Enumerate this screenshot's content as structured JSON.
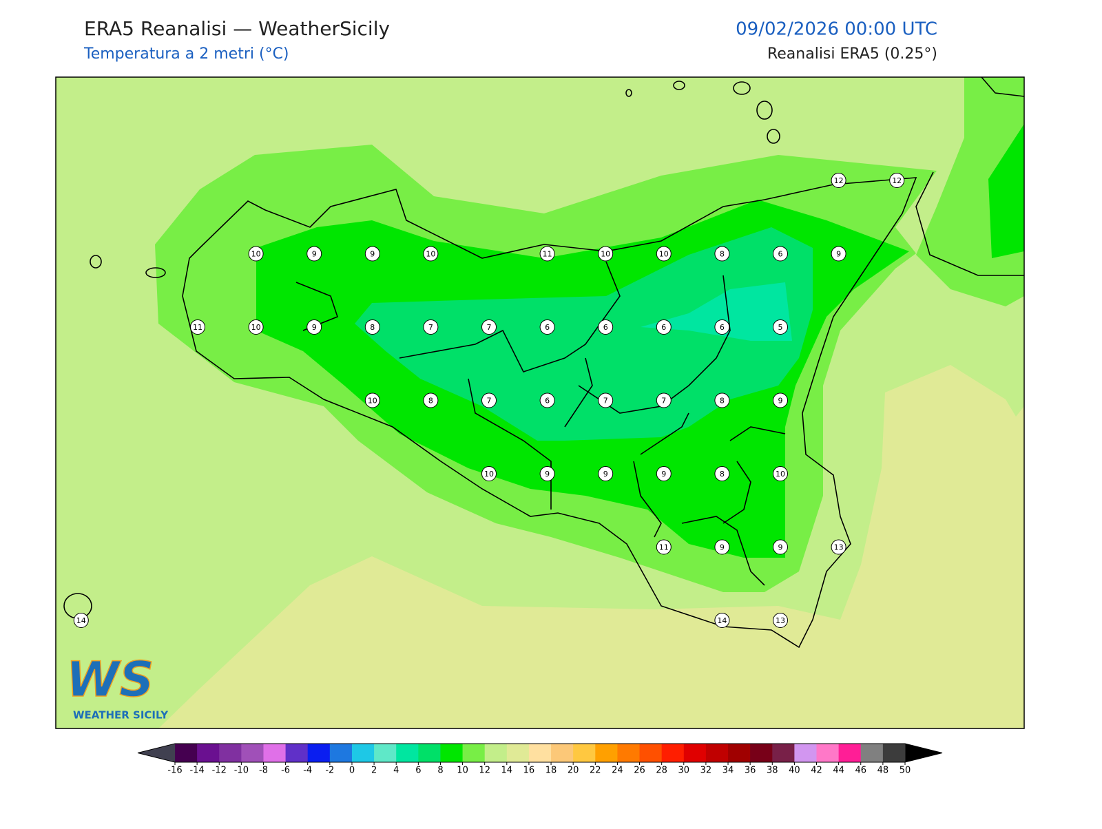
{
  "header": {
    "title": "ERA5 Reanalisi — WeatherSicily",
    "subtitle": "Temperatura a 2 metri (°C)",
    "datetime": "09/02/2026 00:00 UTC",
    "source": "Reanalisi ERA5 (0.25°)"
  },
  "stations": [
    12,
    12,
    10,
    9,
    9,
    10,
    11,
    10,
    10,
    8,
    6,
    9,
    11,
    10,
    9,
    8,
    7,
    7,
    6,
    6,
    6,
    6,
    5,
    10,
    8,
    7,
    6,
    7,
    7,
    8,
    9,
    10,
    9,
    9,
    9,
    8,
    10,
    11,
    9,
    9,
    13,
    14,
    14,
    13
  ],
  "colorbar": {
    "ticks": [
      -16,
      -14,
      -12,
      -10,
      -8,
      -6,
      -4,
      -2,
      0,
      2,
      4,
      6,
      8,
      10,
      12,
      14,
      16,
      18,
      20,
      22,
      24,
      26,
      28,
      30,
      32,
      34,
      36,
      38,
      40,
      42,
      44,
      46,
      48,
      50
    ],
    "colors": [
      "#450050",
      "#6a1090",
      "#8030a0",
      "#a050b8",
      "#e070e8",
      "#6030c8",
      "#0a1ef0",
      "#1e78e0",
      "#1ec8e6",
      "#5fe8c8",
      "#00e6a0",
      "#00e068",
      "#00e600",
      "#78ee46",
      "#c3ee8a",
      "#e0ea96",
      "#ffe0a0",
      "#fcc878",
      "#ffc840",
      "#ffa000",
      "#ff7a00",
      "#ff5000",
      "#ff1e00",
      "#e00000",
      "#c00000",
      "#a00000",
      "#780018",
      "#782048",
      "#d296f0",
      "#ff78c8",
      "#ff1e96",
      "#808080",
      "#3c3c3c"
    ],
    "under": "#404050",
    "over": "#000000"
  },
  "logo": {
    "mark": "WS",
    "text": "WEATHER SICILY"
  }
}
